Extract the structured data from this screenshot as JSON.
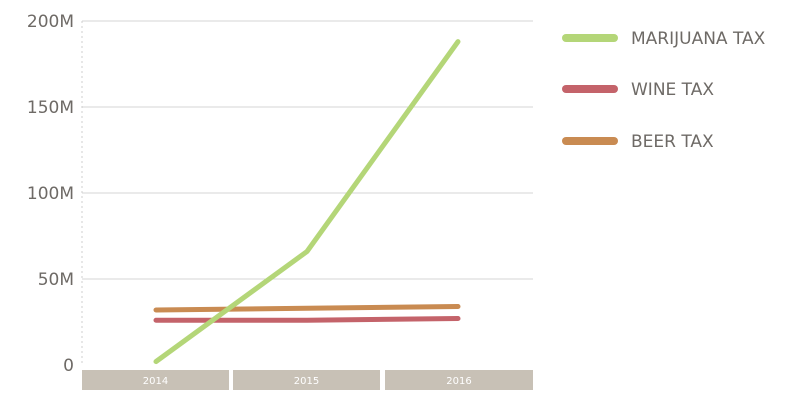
{
  "chart_data": {
    "type": "line",
    "x": [
      "2014",
      "2015",
      "2016"
    ],
    "series": [
      {
        "name": "MARIJUANA TAX",
        "color": "#b4d678",
        "values": [
          2,
          66,
          188
        ]
      },
      {
        "name": "WINE TAX",
        "color": "#c4636a",
        "values": [
          26,
          26,
          27
        ]
      },
      {
        "name": "BEER TAX",
        "color": "#c98b52",
        "values": [
          32,
          33,
          34
        ]
      }
    ],
    "y_ticks": [
      {
        "value": 0,
        "label": "0"
      },
      {
        "value": 50,
        "label": "50M"
      },
      {
        "value": 100,
        "label": "100M"
      },
      {
        "value": 150,
        "label": "150M"
      },
      {
        "value": 200,
        "label": "200M"
      }
    ],
    "ylim": [
      0,
      200
    ],
    "grid": true,
    "legend_position": "right",
    "axis_band_color": "#c8c1b6",
    "gridline_color": "#d4d4d4",
    "label_color": "#6e6a66"
  }
}
